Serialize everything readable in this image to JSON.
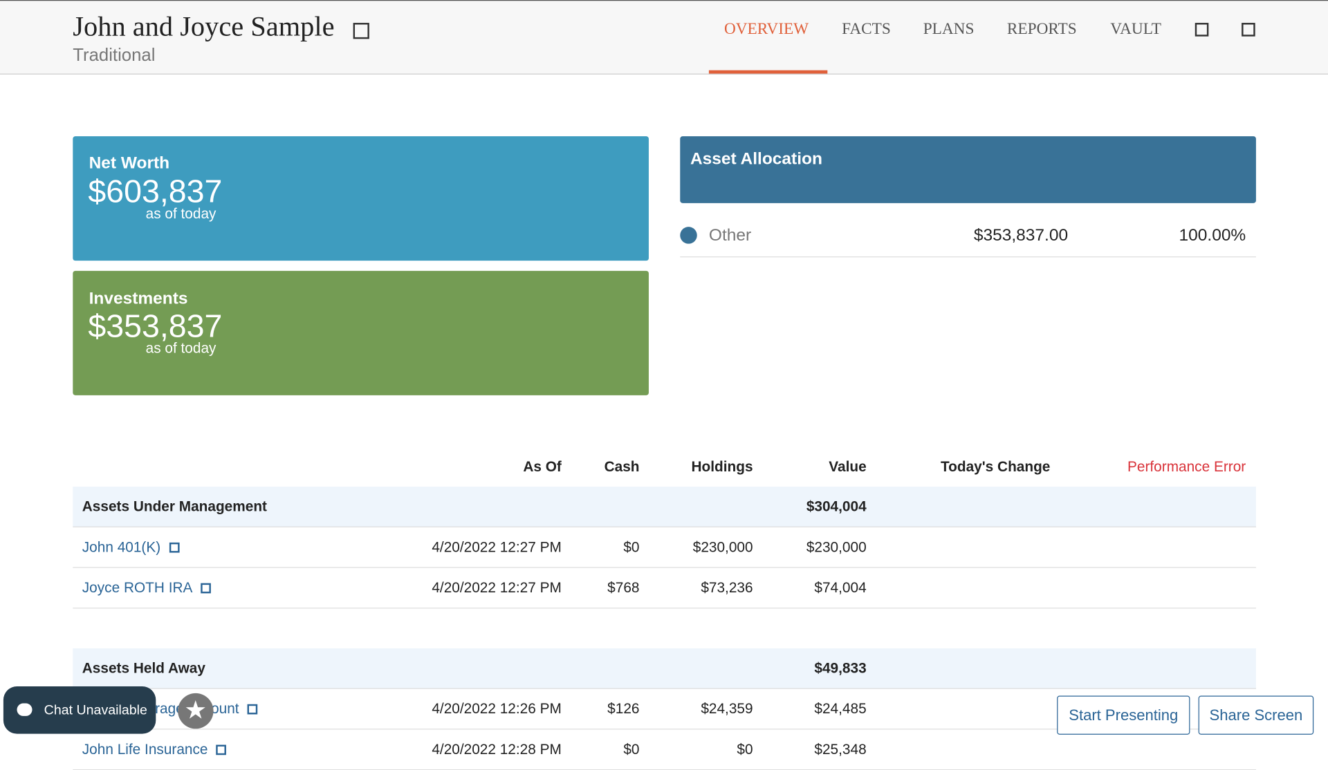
{
  "header": {
    "title": "John and Joyce Sample",
    "subtitle": "Traditional"
  },
  "nav": [
    "OVERVIEW",
    "FACTS",
    "PLANS",
    "REPORTS",
    "VAULT"
  ],
  "cards": [
    {
      "title": "Net Worth",
      "value": "$603,837",
      "note": "as of today"
    },
    {
      "title": "Investments",
      "value": "$353,837",
      "note": "as of today"
    }
  ],
  "allocation": {
    "title": "Asset Allocation",
    "rows": [
      {
        "name": "Other",
        "amount": "$353,837.00",
        "percent": "100.00%"
      }
    ]
  },
  "table": {
    "columns": [
      "As Of",
      "Cash",
      "Holdings",
      "Value",
      "Today's Change",
      "Performance Error"
    ],
    "groups": [
      {
        "name": "Assets Under Management",
        "total": "$304,004",
        "rows": [
          [
            "John 401(K)",
            "4/20/2022 12:27 PM",
            "$0",
            "$230,000",
            "$230,000"
          ],
          [
            "Joyce ROTH IRA",
            "4/20/2022 12:27 PM",
            "$768",
            "$73,236",
            "$74,004"
          ]
        ]
      },
      {
        "name": "Assets Held Away",
        "total": "$49,833",
        "rows": [
          [
            "John Brokerage Account",
            "4/20/2022 12:26 PM",
            "$126",
            "$24,359",
            "$24,485"
          ],
          [
            "John Life Insurance",
            "4/20/2022 12:28 PM",
            "$0",
            "$0",
            "$25,348"
          ]
        ]
      }
    ]
  },
  "buttons": {
    "chat": "Chat Unavailable",
    "present": "Start Presenting",
    "share": "Share Screen"
  }
}
